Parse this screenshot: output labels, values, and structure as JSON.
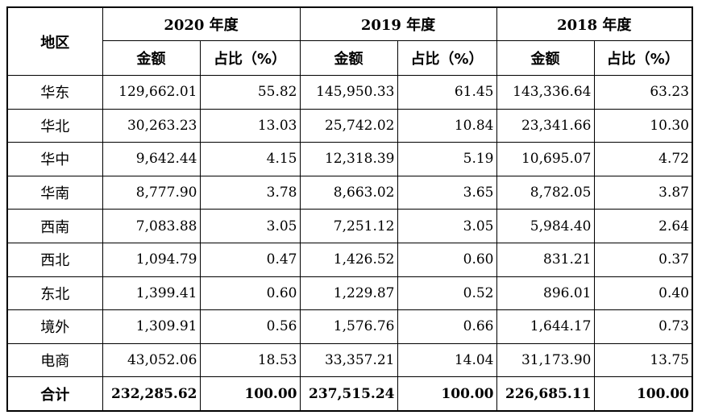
{
  "table": {
    "region_header": "地区",
    "years": [
      "2020 年度",
      "2019 年度",
      "2018 年度"
    ],
    "amount_header": "金额",
    "ratio_header": "占比（%）",
    "rows": [
      {
        "region": "华东",
        "cells": [
          "129,662.01",
          "55.82",
          "145,950.33",
          "61.45",
          "143,336.64",
          "63.23"
        ]
      },
      {
        "region": "华北",
        "cells": [
          "30,263.23",
          "13.03",
          "25,742.02",
          "10.84",
          "23,341.66",
          "10.30"
        ]
      },
      {
        "region": "华中",
        "cells": [
          "9,642.44",
          "4.15",
          "12,318.39",
          "5.19",
          "10,695.07",
          "4.72"
        ]
      },
      {
        "region": "华南",
        "cells": [
          "8,777.90",
          "3.78",
          "8,663.02",
          "3.65",
          "8,782.05",
          "3.87"
        ]
      },
      {
        "region": "西南",
        "cells": [
          "7,083.88",
          "3.05",
          "7,251.12",
          "3.05",
          "5,984.40",
          "2.64"
        ]
      },
      {
        "region": "西北",
        "cells": [
          "1,094.79",
          "0.47",
          "1,426.52",
          "0.60",
          "831.21",
          "0.37"
        ]
      },
      {
        "region": "东北",
        "cells": [
          "1,399.41",
          "0.60",
          "1,229.87",
          "0.52",
          "896.01",
          "0.40"
        ]
      },
      {
        "region": "境外",
        "cells": [
          "1,309.91",
          "0.56",
          "1,576.76",
          "0.66",
          "1,644.17",
          "0.73"
        ]
      },
      {
        "region": "电商",
        "cells": [
          "43,052.06",
          "18.53",
          "33,357.21",
          "14.04",
          "31,173.90",
          "13.75"
        ]
      }
    ],
    "total": {
      "region": "合计",
      "cells": [
        "232,285.62",
        "100.00",
        "237,515.24",
        "100.00",
        "226,685.11",
        "100.00"
      ]
    }
  }
}
